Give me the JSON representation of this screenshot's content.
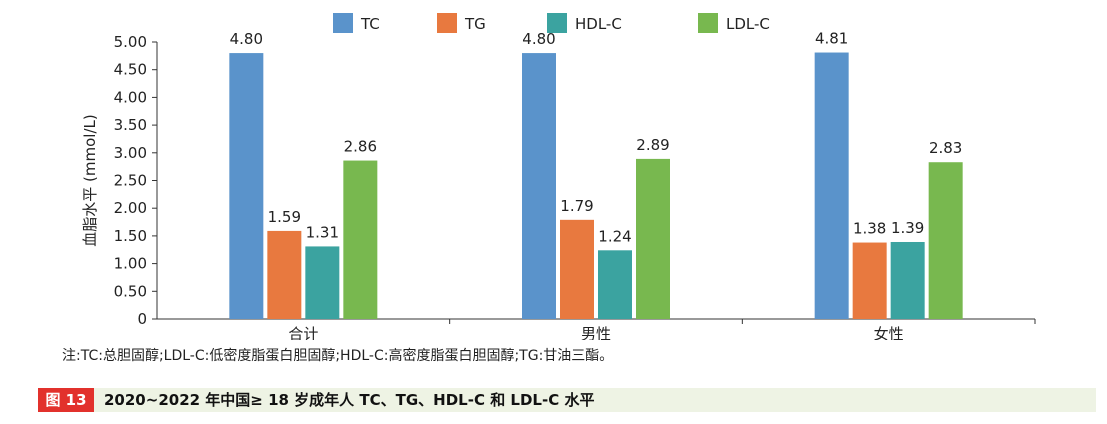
{
  "chart_data": {
    "type": "bar",
    "title": "",
    "xlabel": "",
    "ylabel": "血脂水平 (mmol/L)",
    "categories": [
      "合计",
      "男性",
      "女性"
    ],
    "series": [
      {
        "name": "TC",
        "color": "#5a93cb",
        "values": [
          4.8,
          4.8,
          4.81
        ]
      },
      {
        "name": "TG",
        "color": "#e8793f",
        "values": [
          1.59,
          1.79,
          1.38
        ]
      },
      {
        "name": "HDL-C",
        "color": "#3ba3a0",
        "values": [
          1.31,
          1.24,
          1.39
        ]
      },
      {
        "name": "LDL-C",
        "color": "#78b84f",
        "values": [
          2.86,
          2.89,
          2.83
        ]
      }
    ],
    "ylim": [
      0,
      5.0
    ],
    "yticks": [
      "0",
      "0.50",
      "1.00",
      "1.50",
      "2.00",
      "2.50",
      "3.00",
      "3.50",
      "4.00",
      "4.50",
      "5.00"
    ],
    "value_labels": [
      [
        "4.80",
        "4.80",
        "4.81"
      ],
      [
        "1.59",
        "1.79",
        "1.38"
      ],
      [
        "1.31",
        "1.24",
        "1.39"
      ],
      [
        "2.86",
        "2.89",
        "2.83"
      ]
    ],
    "grid": false,
    "legend": "top"
  },
  "note": "注:TC:总胆固醇;LDL-C:低密度脂蛋白胆固醇;HDL-C:高密度脂蛋白胆固醇;TG:甘油三酯。",
  "caption": {
    "label": "图 13",
    "title": "2020~2022 年中国≥ 18 岁成年人 TC、TG、HDL-C 和 LDL-C 水平"
  },
  "colors": {
    "caption_label_bg": "#e2312c",
    "caption_bg": "#eef3e4"
  }
}
